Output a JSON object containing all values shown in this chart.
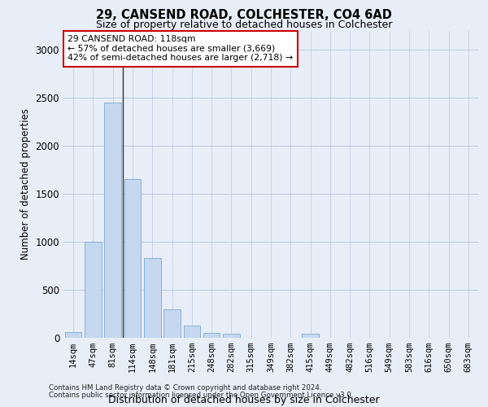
{
  "title_line1": "29, CANSEND ROAD, COLCHESTER, CO4 6AD",
  "title_line2": "Size of property relative to detached houses in Colchester",
  "xlabel": "Distribution of detached houses by size in Colchester",
  "ylabel": "Number of detached properties",
  "footer_line1": "Contains HM Land Registry data © Crown copyright and database right 2024.",
  "footer_line2": "Contains public sector information licensed under the Open Government Licence v3.0.",
  "annotation_line1": "29 CANSEND ROAD: 118sqm",
  "annotation_line2": "← 57% of detached houses are smaller (3,669)",
  "annotation_line3": "42% of semi-detached houses are larger (2,718) →",
  "bar_labels": [
    "14sqm",
    "47sqm",
    "81sqm",
    "114sqm",
    "148sqm",
    "181sqm",
    "215sqm",
    "248sqm",
    "282sqm",
    "315sqm",
    "349sqm",
    "382sqm",
    "415sqm",
    "449sqm",
    "482sqm",
    "516sqm",
    "549sqm",
    "583sqm",
    "616sqm",
    "650sqm",
    "683sqm"
  ],
  "bar_values": [
    60,
    1000,
    2450,
    1650,
    830,
    300,
    130,
    55,
    45,
    0,
    0,
    0,
    40,
    0,
    0,
    0,
    0,
    0,
    0,
    0,
    0
  ],
  "bar_color": "#c5d8f0",
  "bar_edge_color": "#7aaad0",
  "ylim": [
    0,
    3200
  ],
  "yticks": [
    0,
    500,
    1000,
    1500,
    2000,
    2500,
    3000
  ],
  "background_color": "#e8eef8",
  "plot_background": "#e8eef8",
  "grid_color": "#b8c8e0",
  "annotation_box_facecolor": "#ffffff",
  "annotation_box_edgecolor": "#cc0000",
  "vline_color": "#333333",
  "vline_x": 2.5
}
